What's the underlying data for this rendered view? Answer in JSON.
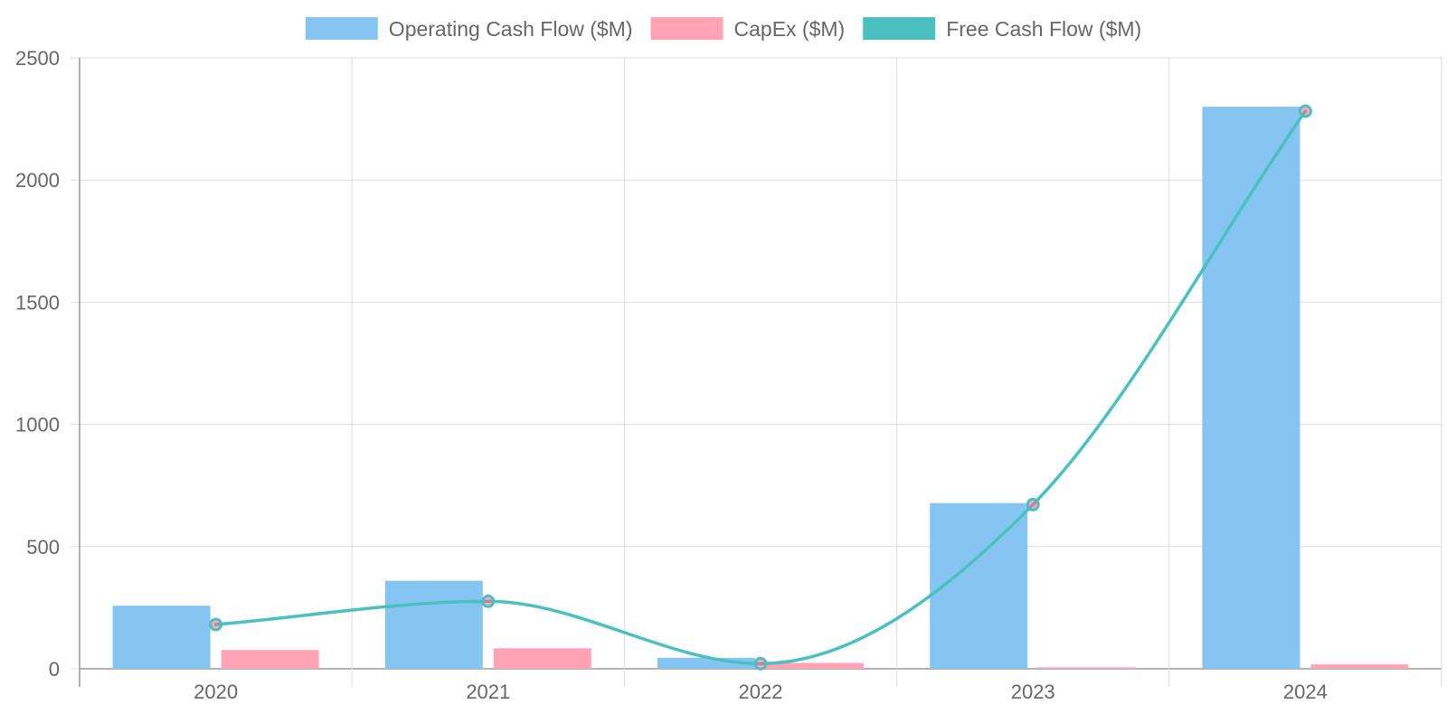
{
  "chart_data": {
    "type": "bar",
    "categories": [
      "2020",
      "2021",
      "2022",
      "2023",
      "2024"
    ],
    "ylim": [
      0,
      2500
    ],
    "yticks": [
      0,
      500,
      1000,
      1500,
      2000,
      2500
    ],
    "grid": true,
    "legend_position": "top",
    "series": [
      {
        "name": "Operating Cash Flow ($M)",
        "type": "bar",
        "values": [
          258,
          360,
          45,
          678,
          2300
        ],
        "color": "#86c5f2"
      },
      {
        "name": "CapEx ($M)",
        "type": "bar",
        "values": [
          77,
          84,
          24,
          6,
          18
        ],
        "color": "#ffa3b5"
      },
      {
        "name": "Free Cash Flow ($M)",
        "type": "line",
        "values": [
          181,
          276,
          21,
          672,
          2282
        ],
        "color": "#4bc0c0"
      }
    ]
  }
}
